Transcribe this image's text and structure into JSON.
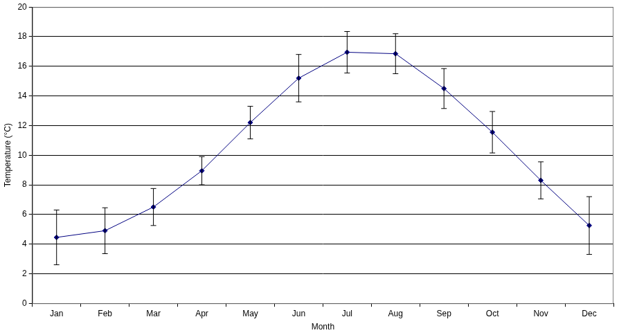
{
  "chart_data": {
    "type": "line",
    "x_label": "Month",
    "y_label": "Temperature (°C)",
    "categories": [
      "Jan",
      "Feb",
      "Mar",
      "Apr",
      "May",
      "Jun",
      "Jul",
      "Aug",
      "Sep",
      "Oct",
      "Nov",
      "Dec"
    ],
    "series": [
      {
        "name": "Temperature",
        "color": "#000080",
        "marker": "diamond",
        "line_style": "solid",
        "values": [
          4.45,
          4.9,
          6.5,
          8.95,
          12.2,
          15.2,
          16.95,
          16.85,
          14.5,
          11.55,
          8.3,
          5.25
        ],
        "errors": [
          1.85,
          1.55,
          1.25,
          0.95,
          1.1,
          1.6,
          1.4,
          1.35,
          1.35,
          1.4,
          1.25,
          1.95
        ]
      }
    ],
    "ylim": [
      0,
      20
    ],
    "yticks": [
      0,
      2,
      4,
      6,
      8,
      10,
      12,
      14,
      16,
      18,
      20
    ],
    "grid": true
  }
}
